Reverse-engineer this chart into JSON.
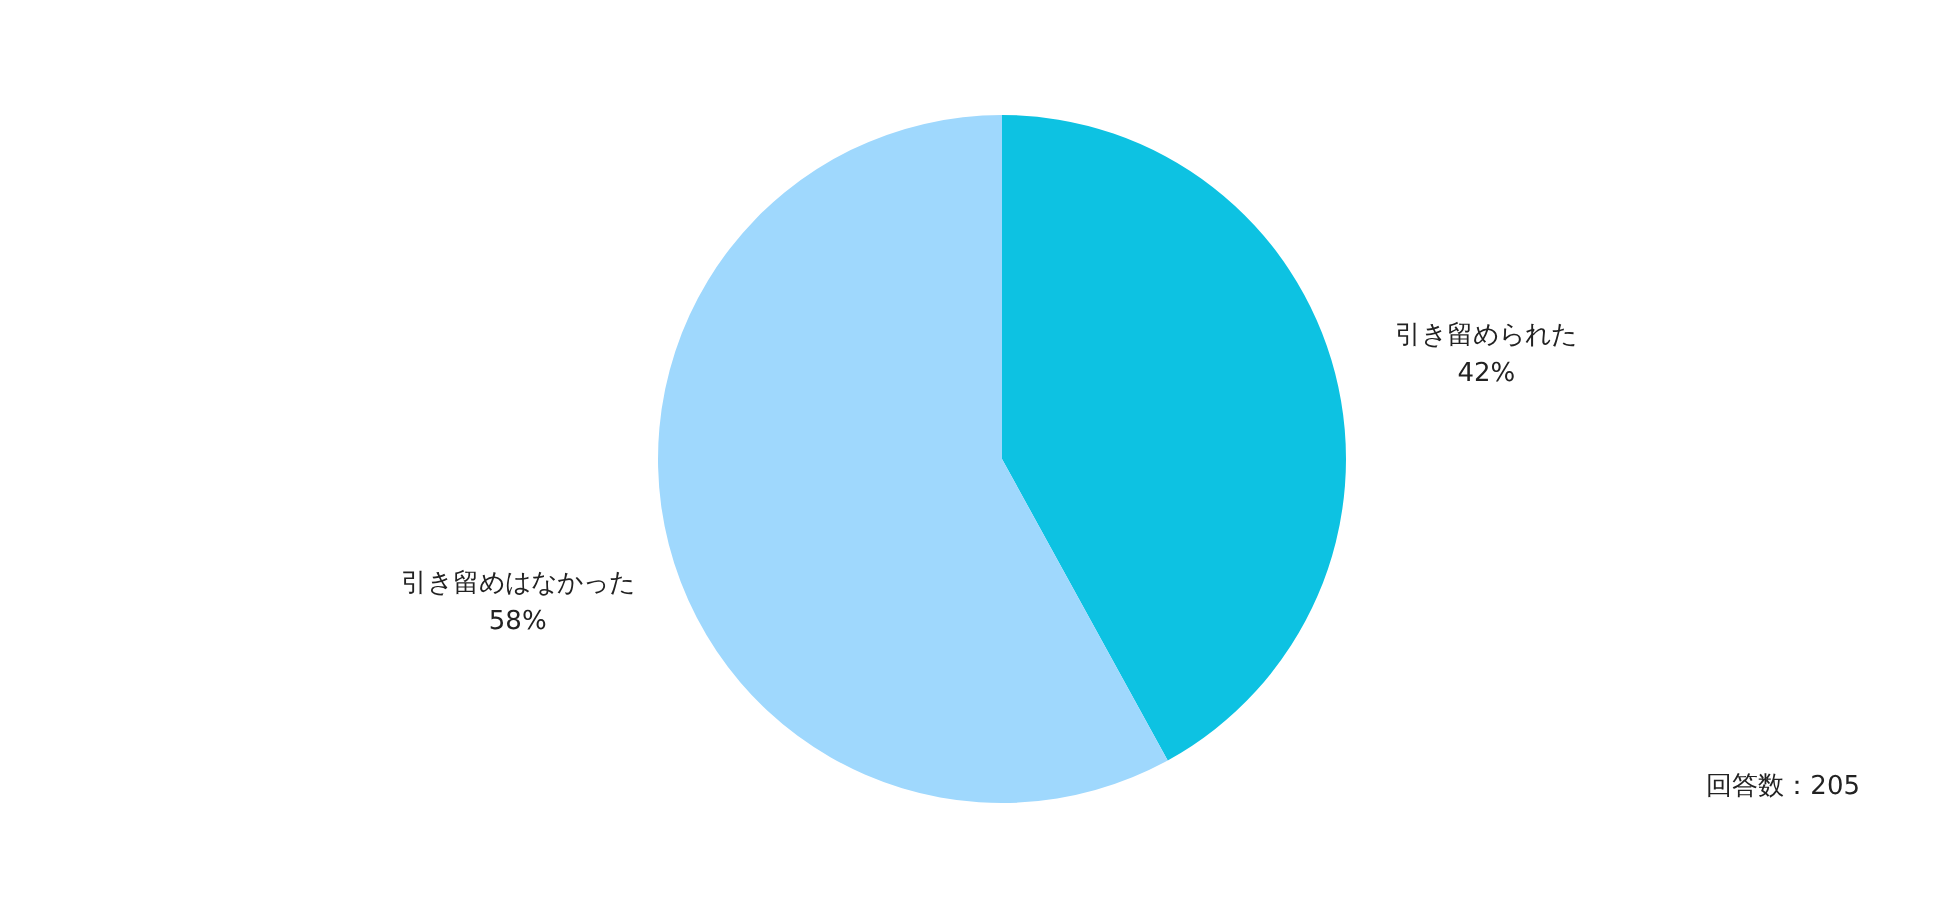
{
  "chart_data": {
    "type": "pie",
    "categories": [
      "引き留められた",
      "引き留めはなかった"
    ],
    "values": [
      42,
      58
    ],
    "colors": [
      "#0dc2e2",
      "#9fd8fd"
    ],
    "value_labels": [
      "42%",
      "58%"
    ],
    "annotations": [
      "回答数：205"
    ]
  }
}
